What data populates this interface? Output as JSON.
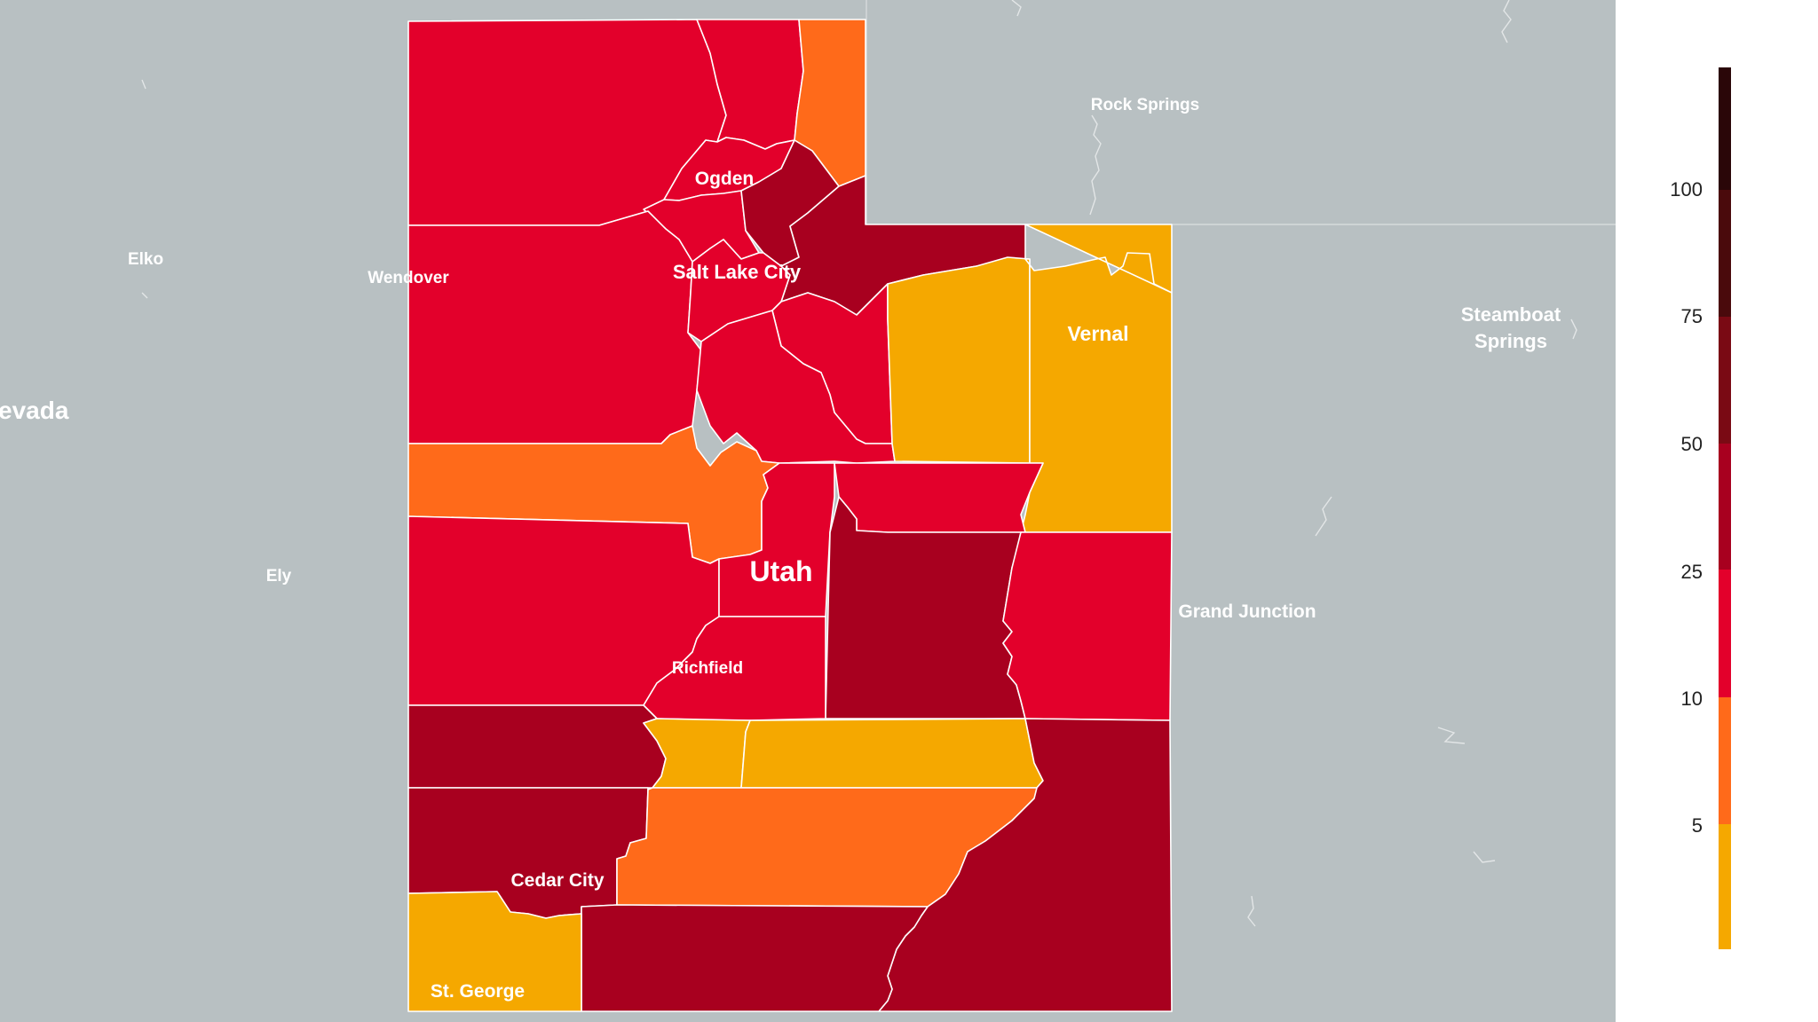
{
  "map": {
    "state_label": "Utah",
    "neighbor_state_label": "evada",
    "cities": [
      {
        "name": "Rock Springs"
      },
      {
        "name": "Elko"
      },
      {
        "name": "Wendover"
      },
      {
        "name": "Steamboat"
      },
      {
        "name": "Springs"
      },
      {
        "name": "Ely"
      },
      {
        "name": "Grand Junction"
      },
      {
        "name": "Ogden"
      },
      {
        "name": "Salt Lake City"
      },
      {
        "name": "Vernal"
      },
      {
        "name": "Richfield"
      },
      {
        "name": "Cedar City"
      },
      {
        "name": "St. George"
      }
    ],
    "colors": {
      "background": "#b8c0c2",
      "bin_0_5": "#f5a800",
      "bin_5_10": "#ff6a1a",
      "bin_10_25": "#e3002b",
      "bin_25_50": "#a8001f",
      "bin_50_75": "#7a0a14",
      "bin_75_100": "#4a0a0c",
      "bin_100_plus": "#2a0608"
    }
  },
  "legend": {
    "ticks": [
      "100",
      "75",
      "50",
      "25",
      "10",
      "5"
    ]
  }
}
